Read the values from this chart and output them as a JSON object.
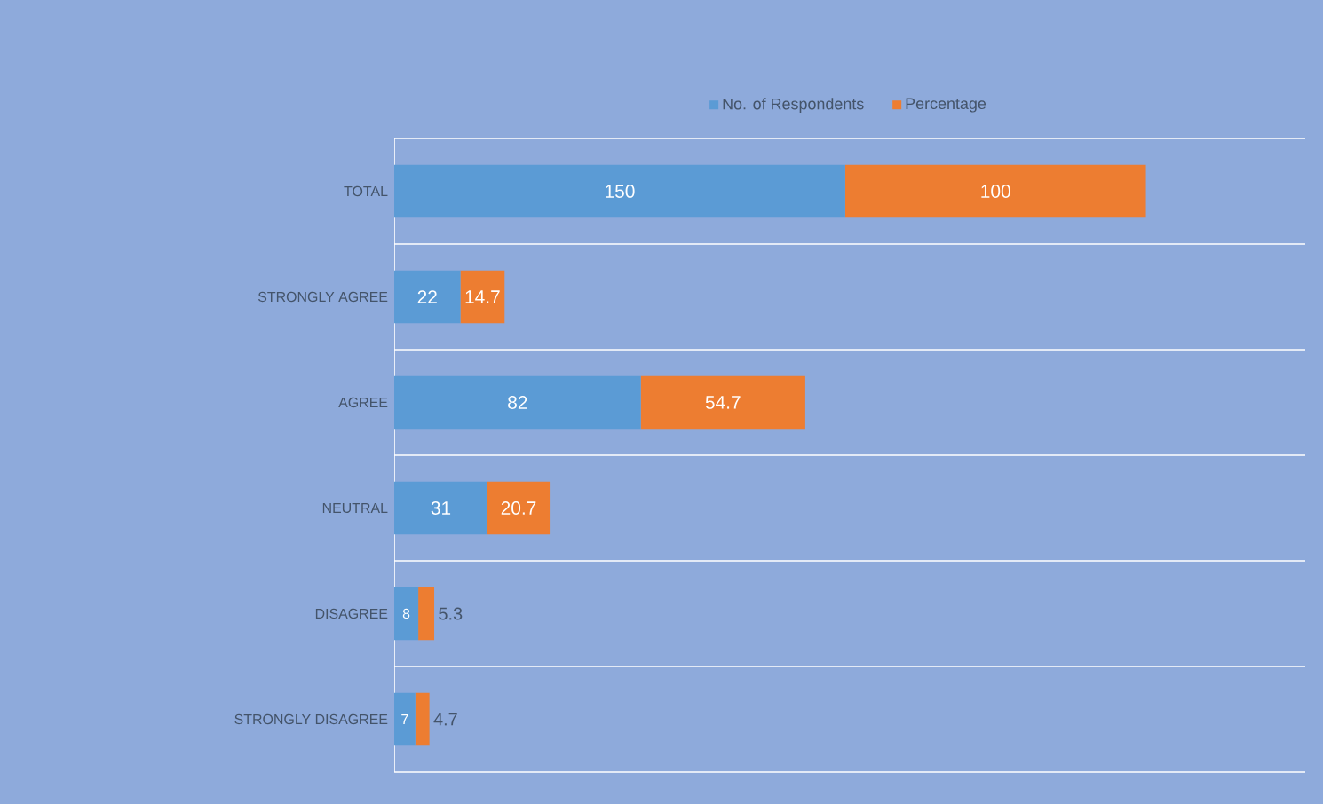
{
  "chart_data": {
    "type": "bar",
    "orientation": "horizontal",
    "stacked": true,
    "categories": [
      "TOTAL",
      "STRONGLY AGREE",
      "AGREE",
      "NEUTRAL",
      "DISAGREE",
      "STRONGLY DISAGREE"
    ],
    "series": [
      {
        "name": "No. of Respondents",
        "color": "#5b9bd5",
        "values": [
          150,
          22,
          82,
          31,
          8,
          7
        ]
      },
      {
        "name": "Percentage",
        "color": "#ed7d31",
        "values": [
          100,
          14.7,
          54.7,
          20.7,
          5.3,
          4.7
        ]
      }
    ],
    "xlim": [
      0,
      303
    ],
    "tick_labels": "y",
    "grid": "y",
    "legend": "top",
    "data_labels": true
  }
}
